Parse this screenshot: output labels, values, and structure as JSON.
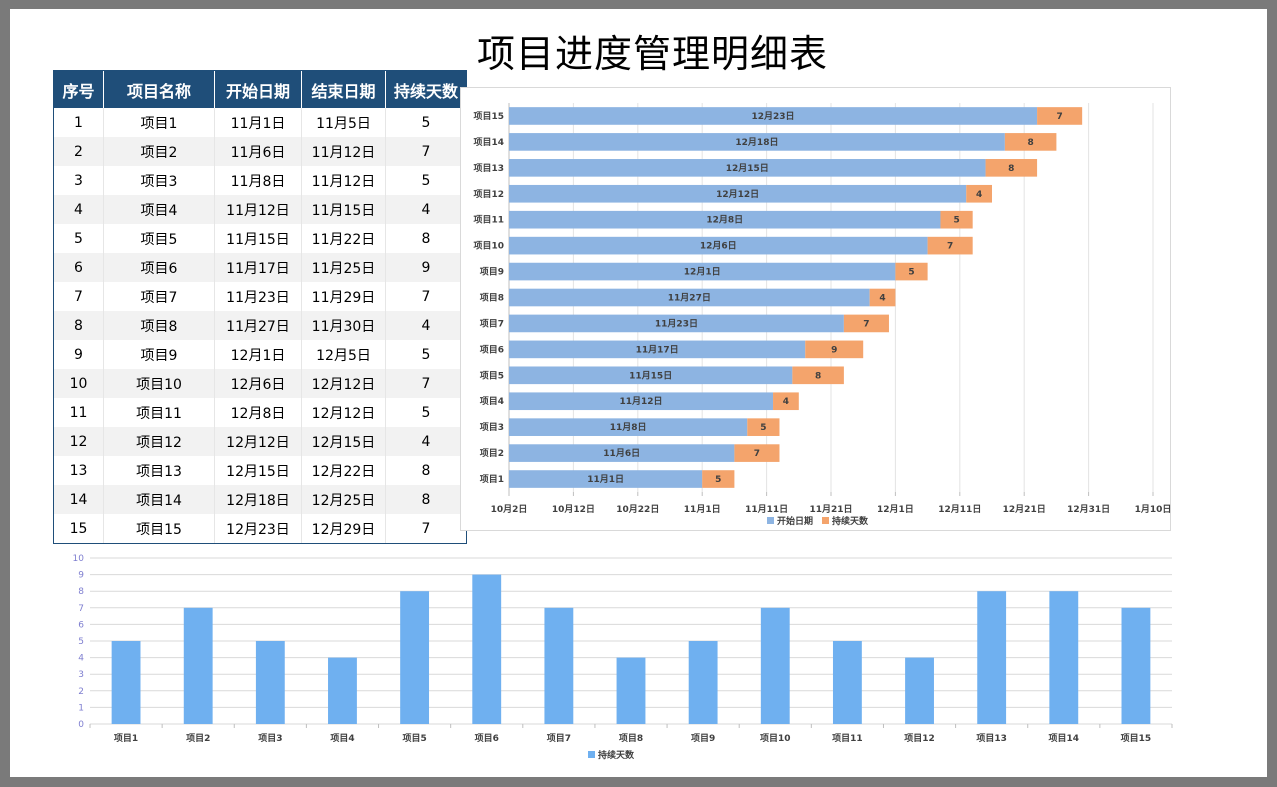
{
  "title": "项目进度管理明细表",
  "table": {
    "headers": [
      "序号",
      "项目名称",
      "开始日期",
      "结束日期",
      "持续天数"
    ],
    "rows": [
      [
        "1",
        "项目1",
        "11月1日",
        "11月5日",
        "5"
      ],
      [
        "2",
        "项目2",
        "11月6日",
        "11月12日",
        "7"
      ],
      [
        "3",
        "项目3",
        "11月8日",
        "11月12日",
        "5"
      ],
      [
        "4",
        "项目4",
        "11月12日",
        "11月15日",
        "4"
      ],
      [
        "5",
        "项目5",
        "11月15日",
        "11月22日",
        "8"
      ],
      [
        "6",
        "项目6",
        "11月17日",
        "11月25日",
        "9"
      ],
      [
        "7",
        "项目7",
        "11月23日",
        "11月29日",
        "7"
      ],
      [
        "8",
        "项目8",
        "11月27日",
        "11月30日",
        "4"
      ],
      [
        "9",
        "项目9",
        "12月1日",
        "12月5日",
        "5"
      ],
      [
        "10",
        "项目10",
        "12月6日",
        "12月12日",
        "7"
      ],
      [
        "11",
        "项目11",
        "12月8日",
        "12月12日",
        "5"
      ],
      [
        "12",
        "项目12",
        "12月12日",
        "12月15日",
        "4"
      ],
      [
        "13",
        "项目13",
        "12月15日",
        "12月22日",
        "8"
      ],
      [
        "14",
        "项目14",
        "12月18日",
        "12月25日",
        "8"
      ],
      [
        "15",
        "项目15",
        "12月23日",
        "12月29日",
        "7"
      ]
    ]
  },
  "chart_data": [
    {
      "type": "bar",
      "orientation": "horizontal",
      "stacked": true,
      "categories": [
        "项目1",
        "项目2",
        "项目3",
        "项目4",
        "项目5",
        "项目6",
        "项目7",
        "项目8",
        "项目9",
        "项目10",
        "项目11",
        "项目12",
        "项目13",
        "项目14",
        "项目15"
      ],
      "series": [
        {
          "name": "开始日期",
          "color": "#8db4e2",
          "values": [
            "2023-11-01",
            "2023-11-06",
            "2023-11-08",
            "2023-11-12",
            "2023-11-15",
            "2023-11-17",
            "2023-11-23",
            "2023-11-27",
            "2023-12-01",
            "2023-12-06",
            "2023-12-08",
            "2023-12-12",
            "2023-12-15",
            "2023-12-18",
            "2023-12-23"
          ],
          "labels": [
            "11月1日",
            "11月6日",
            "11月8日",
            "11月12日",
            "11月15日",
            "11月17日",
            "11月23日",
            "11月27日",
            "12月1日",
            "12月6日",
            "12月8日",
            "12月12日",
            "12月15日",
            "12月18日",
            "12月23日"
          ]
        },
        {
          "name": "持续天数",
          "color": "#f4a46c",
          "values": [
            5,
            7,
            5,
            4,
            8,
            9,
            7,
            4,
            5,
            7,
            5,
            4,
            8,
            8,
            7
          ]
        }
      ],
      "xlim": [
        "2023-10-02",
        "2024-01-10"
      ],
      "x_ticks": [
        "2023-10-02",
        "2023-10-12",
        "2023-10-22",
        "2023-11-01",
        "2023-11-11",
        "2023-11-21",
        "2023-12-01",
        "2023-12-11",
        "2023-12-21",
        "2023-12-31",
        "2024-01-10"
      ],
      "x_tick_labels": [
        "10月2日",
        "10月12日",
        "10月22日",
        "11月1日",
        "11月11日",
        "11月21日",
        "12月1日",
        "12月11日",
        "12月21日",
        "12月31日",
        "1月10日"
      ],
      "grid": true,
      "legend": "bottom"
    },
    {
      "type": "bar",
      "categories": [
        "项目1",
        "项目2",
        "项目3",
        "项目4",
        "项目5",
        "项目6",
        "项目7",
        "项目8",
        "项目9",
        "项目10",
        "项目11",
        "项目12",
        "项目13",
        "项目14",
        "项目15"
      ],
      "series": [
        {
          "name": "持续天数",
          "color": "#6fb0f0",
          "values": [
            5,
            7,
            5,
            4,
            8,
            9,
            7,
            4,
            5,
            7,
            5,
            4,
            8,
            8,
            7
          ]
        }
      ],
      "ylim": [
        0,
        10
      ],
      "y_ticks": [
        0,
        1,
        2,
        3,
        4,
        5,
        6,
        7,
        8,
        9,
        10
      ],
      "grid": true,
      "legend": "bottom"
    }
  ]
}
